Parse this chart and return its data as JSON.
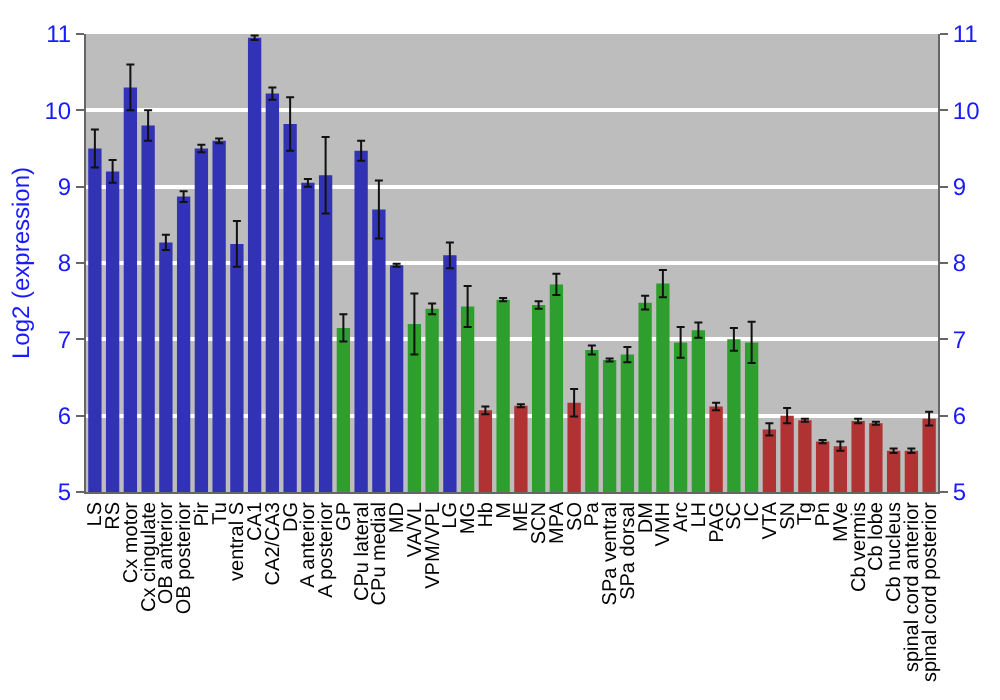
{
  "chart_data": {
    "type": "bar",
    "ylabel": "Log2 (expression)",
    "categories": [
      "LS",
      "RS",
      "Cx motor",
      "Cx cingulate",
      "OB anterior",
      "OB posterior",
      "Pir",
      "Tu",
      "ventral S",
      "CA1",
      "CA2/CA3",
      "DG",
      "A anterior",
      "A posterior",
      "GP",
      "CPu lateral",
      "CPu medial",
      "MD",
      "VA/VL",
      "VPM/VPL",
      "LG",
      "MG",
      "Hb",
      "M",
      "ME",
      "SCN",
      "MPA",
      "SO",
      "Pa",
      "SPa ventral",
      "SPa dorsal",
      "DM",
      "VMH",
      "Arc",
      "LH",
      "PAG",
      "SC",
      "IC",
      "VTA",
      "SN",
      "Tg",
      "Pn",
      "MVe",
      "Cb vermis",
      "Cb lobe",
      "Cb nucleus",
      "spinal cord anterior",
      "spinal cord posterior"
    ],
    "values": [
      9.5,
      9.2,
      10.3,
      9.8,
      8.27,
      8.87,
      9.5,
      9.6,
      8.25,
      10.95,
      10.22,
      9.82,
      9.05,
      9.15,
      7.15,
      9.47,
      8.7,
      7.97,
      7.2,
      7.4,
      8.1,
      7.43,
      6.07,
      7.52,
      6.13,
      7.45,
      7.72,
      6.17,
      6.86,
      6.73,
      6.8,
      7.48,
      7.73,
      6.96,
      7.12,
      6.12,
      7.0,
      6.96,
      5.82,
      6.0,
      5.94,
      5.66,
      5.6,
      5.93,
      5.9,
      5.54,
      5.54,
      5.96
    ],
    "errors": [
      0.25,
      0.15,
      0.3,
      0.2,
      0.1,
      0.07,
      0.05,
      0.03,
      0.3,
      0.03,
      0.08,
      0.35,
      0.05,
      0.5,
      0.18,
      0.13,
      0.38,
      0.02,
      0.4,
      0.07,
      0.17,
      0.27,
      0.05,
      0.02,
      0.02,
      0.05,
      0.14,
      0.18,
      0.06,
      0.02,
      0.1,
      0.09,
      0.18,
      0.2,
      0.1,
      0.05,
      0.15,
      0.27,
      0.08,
      0.1,
      0.02,
      0.02,
      0.06,
      0.03,
      0.02,
      0.03,
      0.03,
      0.09
    ],
    "colors": [
      "#3232b4",
      "#3232b4",
      "#3232b4",
      "#3232b4",
      "#3232b4",
      "#3232b4",
      "#3232b4",
      "#3232b4",
      "#3232b4",
      "#3232b4",
      "#3232b4",
      "#3232b4",
      "#3232b4",
      "#3232b4",
      "#2e9e2e",
      "#3232b4",
      "#3232b4",
      "#3232b4",
      "#2e9e2e",
      "#2e9e2e",
      "#3232b4",
      "#2e9e2e",
      "#b03232",
      "#2e9e2e",
      "#b03232",
      "#2e9e2e",
      "#2e9e2e",
      "#b03232",
      "#2e9e2e",
      "#2e9e2e",
      "#2e9e2e",
      "#2e9e2e",
      "#2e9e2e",
      "#2e9e2e",
      "#2e9e2e",
      "#b03232",
      "#2e9e2e",
      "#2e9e2e",
      "#b03232",
      "#b03232",
      "#b03232",
      "#b03232",
      "#b03232",
      "#b03232",
      "#b03232",
      "#b03232",
      "#b03232",
      "#b03232"
    ],
    "ylim": [
      5,
      11
    ],
    "yticks": [
      5,
      6,
      7,
      8,
      9,
      10,
      11
    ],
    "y2lim": [
      5,
      11
    ],
    "y2ticks": [
      5,
      6,
      7,
      8,
      9,
      10,
      11
    ],
    "grid": "y"
  }
}
